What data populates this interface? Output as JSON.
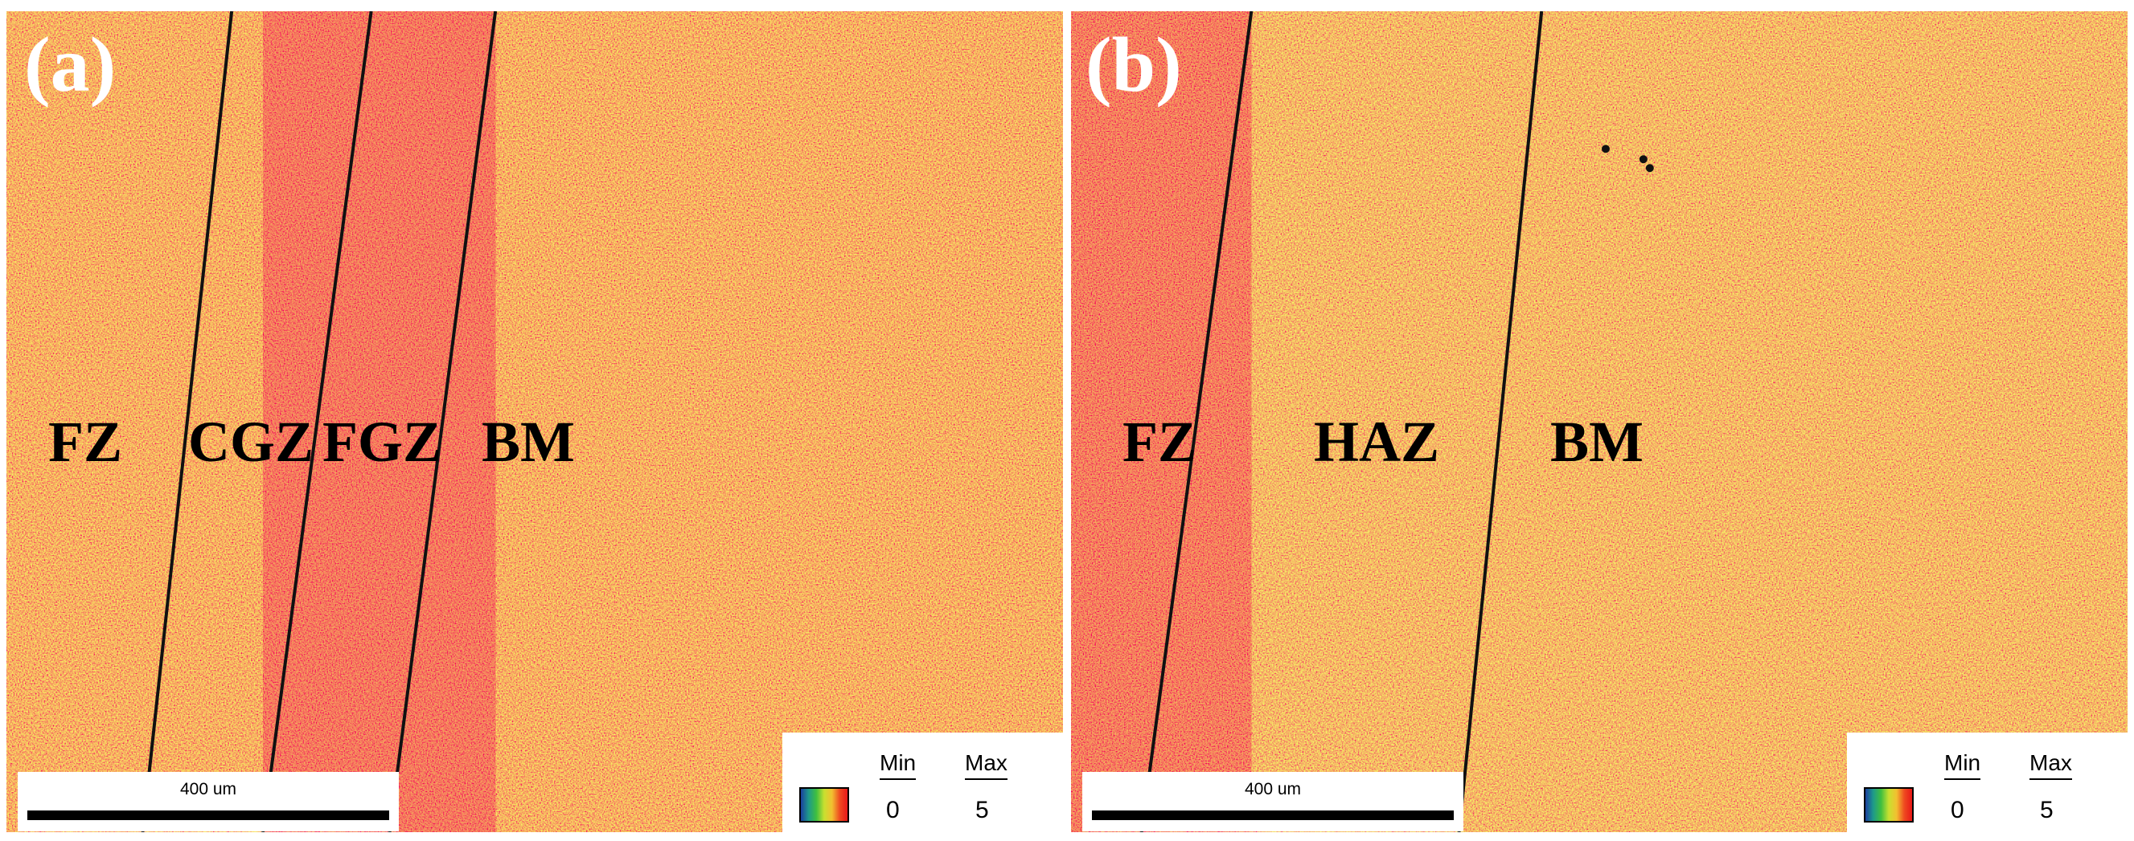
{
  "panels": [
    {
      "label": "(a)",
      "zones": [
        "FZ",
        "CGZ",
        "FGZ",
        "BM"
      ],
      "scale_bar": "400 um",
      "legend": {
        "min_label": "Min",
        "max_label": "Max",
        "min_value": "0",
        "max_value": "5"
      }
    },
    {
      "label": "(b)",
      "zones": [
        "FZ",
        "HAZ",
        "BM"
      ],
      "scale_bar": "400 um",
      "legend": {
        "min_label": "Min",
        "max_label": "Max",
        "min_value": "0",
        "max_value": "5"
      }
    }
  ],
  "colors": {
    "map_red": "#e8301c",
    "map_orange": "#ee7a22",
    "map_yellow": "#dcc22e",
    "map_green": "#8cc23c",
    "boundary": "#111111"
  }
}
